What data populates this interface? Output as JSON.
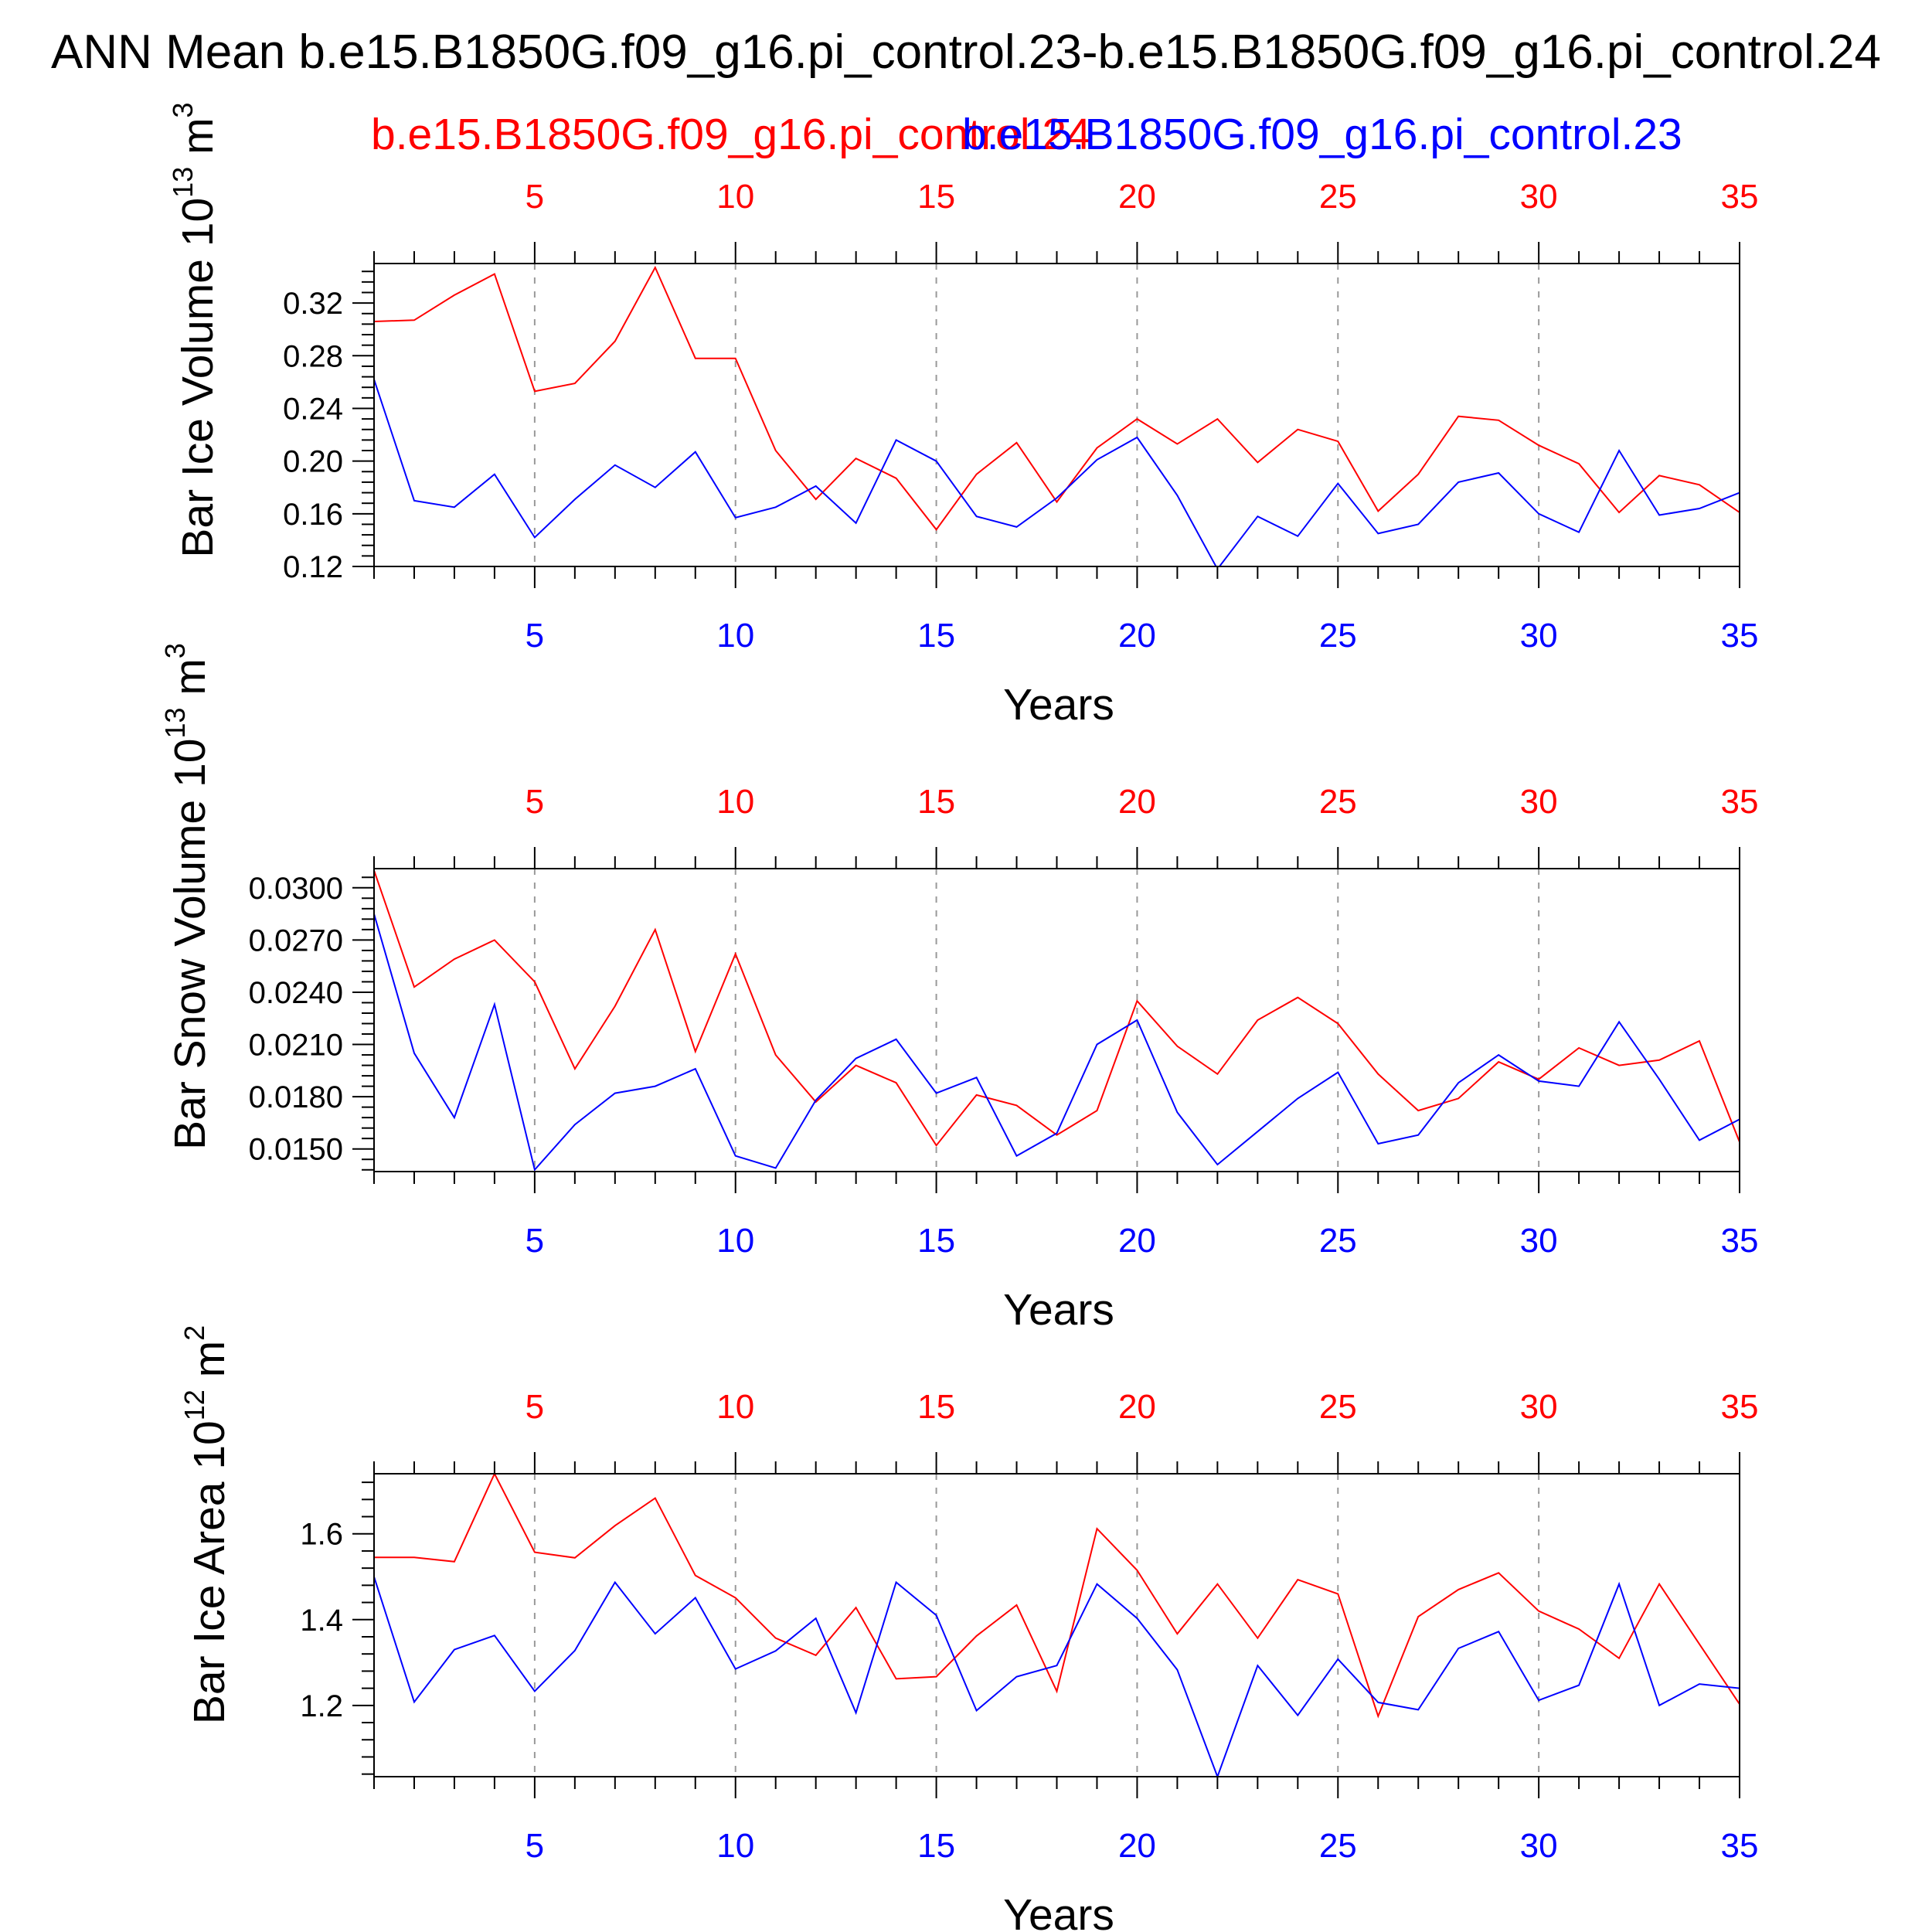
{
  "title": "ANN Mean b.e15.B1850G.f09_g16.pi_control.23-b.e15.B1850G.f09_g16.pi_control.24",
  "legend": {
    "red_label": "b.e15.B1850G.f09_g16.pi_control.24",
    "blue_label": "b.e15.B1850G.f09_g16.pi_control.23"
  },
  "colors": {
    "red": "#ff0000",
    "blue": "#0000ff",
    "axis": "#000000",
    "grid": "#999999"
  },
  "chart_data": [
    {
      "type": "line",
      "ylabel": "Bar Ice Volume 10",
      "ylabel_exp": "13",
      "ylabel_unit": "m",
      "ylabel_unit_exp": "3",
      "xlabel": "Years",
      "xlim": [
        1,
        35
      ],
      "ylim": [
        0.12,
        0.35
      ],
      "xticks": [
        5,
        10,
        15,
        20,
        25,
        30,
        35
      ],
      "yticks": [
        "0.12",
        "0.16",
        "0.20",
        "0.24",
        "0.28",
        "0.32"
      ],
      "x": [
        1,
        2,
        3,
        4,
        5,
        6,
        7,
        8,
        9,
        10,
        11,
        12,
        13,
        14,
        15,
        16,
        17,
        18,
        19,
        20,
        21,
        22,
        23,
        24,
        25,
        26,
        27,
        28,
        29,
        30,
        31,
        32,
        33,
        34,
        35
      ],
      "series": [
        {
          "name": "b.e15.B1850G.f09_g16.pi_control.24",
          "color": "#ff0000",
          "values": [
            0.306,
            0.307,
            0.326,
            0.342,
            0.253,
            0.259,
            0.291,
            0.347,
            0.278,
            0.278,
            0.208,
            0.171,
            0.202,
            0.187,
            0.148,
            0.19,
            0.214,
            0.169,
            0.21,
            0.232,
            0.213,
            0.232,
            0.199,
            0.224,
            0.215,
            0.162,
            0.19,
            0.234,
            0.231,
            0.212,
            0.198,
            0.161,
            0.189,
            0.182,
            0.161
          ]
        },
        {
          "name": "b.e15.B1850G.f09_g16.pi_control.23",
          "color": "#0000ff",
          "values": [
            0.262,
            0.17,
            0.165,
            0.19,
            0.142,
            0.171,
            0.197,
            0.18,
            0.207,
            0.157,
            0.165,
            0.181,
            0.153,
            0.216,
            0.2,
            0.158,
            0.15,
            0.172,
            0.201,
            0.218,
            0.174,
            0.118,
            0.158,
            0.143,
            0.183,
            0.145,
            0.152,
            0.184,
            0.191,
            0.16,
            0.146,
            0.208,
            0.159,
            0.164,
            0.176
          ]
        }
      ]
    },
    {
      "type": "line",
      "ylabel": "Bar Snow Volume 10",
      "ylabel_exp": "13",
      "ylabel_unit": "m",
      "ylabel_unit_exp": "3",
      "xlabel": "Years",
      "xlim": [
        1,
        35
      ],
      "ylim": [
        0.0137,
        0.0311
      ],
      "xticks": [
        5,
        10,
        15,
        20,
        25,
        30,
        35
      ],
      "yticks": [
        "0.0150",
        "0.0180",
        "0.0210",
        "0.0240",
        "0.0270",
        "0.0300"
      ],
      "x": [
        1,
        2,
        3,
        4,
        5,
        6,
        7,
        8,
        9,
        10,
        11,
        12,
        13,
        14,
        15,
        16,
        17,
        18,
        19,
        20,
        21,
        22,
        23,
        24,
        25,
        26,
        27,
        28,
        29,
        30,
        31,
        32,
        33,
        34,
        35
      ],
      "series": [
        {
          "name": "b.e15.B1850G.f09_g16.pi_control.24",
          "color": "#ff0000",
          "values": [
            0.031,
            0.0243,
            0.0259,
            0.027,
            0.0246,
            0.0196,
            0.0232,
            0.0276,
            0.0206,
            0.0262,
            0.0204,
            0.0177,
            0.0198,
            0.0188,
            0.0152,
            0.0181,
            0.0175,
            0.0158,
            0.0172,
            0.0235,
            0.0209,
            0.0193,
            0.0224,
            0.0237,
            0.0222,
            0.0193,
            0.0172,
            0.0179,
            0.02,
            0.019,
            0.0208,
            0.0198,
            0.0201,
            0.0212,
            0.0154
          ]
        },
        {
          "name": "b.e15.B1850G.f09_g16.pi_control.23",
          "color": "#0000ff",
          "values": [
            0.0285,
            0.0205,
            0.0168,
            0.0233,
            0.0138,
            0.0164,
            0.0182,
            0.0186,
            0.0196,
            0.0146,
            0.0139,
            0.0178,
            0.0202,
            0.0213,
            0.0182,
            0.0191,
            0.0146,
            0.0159,
            0.021,
            0.0224,
            0.0171,
            0.0141,
            0.016,
            0.0179,
            0.0194,
            0.0153,
            0.0158,
            0.0188,
            0.0204,
            0.0189,
            0.0186,
            0.0223,
            0.019,
            0.0155,
            0.0167
          ]
        }
      ]
    },
    {
      "type": "line",
      "ylabel": "Bar Ice Area 10",
      "ylabel_exp": "12",
      "ylabel_unit": "m",
      "ylabel_unit_exp": "2",
      "xlabel": "Years",
      "xlim": [
        1,
        35
      ],
      "ylim": [
        1.034,
        1.74
      ],
      "xticks": [
        5,
        10,
        15,
        20,
        25,
        30,
        35
      ],
      "yticks": [
        "1.2",
        "1.4",
        "1.6"
      ],
      "x": [
        1,
        2,
        3,
        4,
        5,
        6,
        7,
        8,
        9,
        10,
        11,
        12,
        13,
        14,
        15,
        16,
        17,
        18,
        19,
        20,
        21,
        22,
        23,
        24,
        25,
        26,
        27,
        28,
        29,
        30,
        31,
        32,
        33,
        34,
        35
      ],
      "series": [
        {
          "name": "b.e15.B1850G.f09_g16.pi_control.24",
          "color": "#ff0000",
          "values": [
            1.545,
            1.545,
            1.535,
            1.74,
            1.557,
            1.544,
            1.619,
            1.683,
            1.503,
            1.451,
            1.357,
            1.317,
            1.428,
            1.262,
            1.267,
            1.362,
            1.434,
            1.233,
            1.612,
            1.515,
            1.367,
            1.483,
            1.357,
            1.493,
            1.46,
            1.175,
            1.407,
            1.47,
            1.509,
            1.42,
            1.378,
            1.31,
            1.483,
            1.343,
            1.203
          ]
        },
        {
          "name": "b.e15.B1850G.f09_g16.pi_control.23",
          "color": "#0000ff",
          "values": [
            1.5,
            1.208,
            1.33,
            1.363,
            1.233,
            1.328,
            1.487,
            1.367,
            1.451,
            1.285,
            1.327,
            1.403,
            1.183,
            1.487,
            1.41,
            1.188,
            1.267,
            1.293,
            1.483,
            1.403,
            1.283,
            1.034,
            1.293,
            1.177,
            1.308,
            1.207,
            1.19,
            1.333,
            1.372,
            1.212,
            1.247,
            1.483,
            1.2,
            1.25,
            1.24
          ]
        }
      ]
    }
  ]
}
